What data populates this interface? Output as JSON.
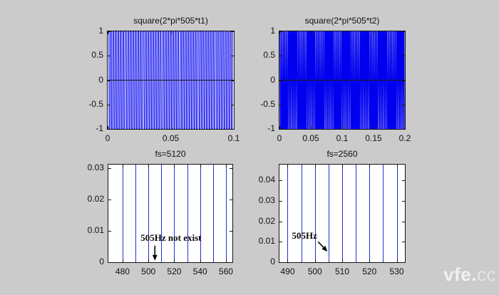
{
  "figure": {
    "background_color": "#cbcbcb",
    "axes_color": "#141414",
    "watermark": {
      "text_bold": "vfe.",
      "text_light": "cc"
    }
  },
  "chart_data": [
    {
      "id": "signal-t1",
      "type": "line",
      "title": "square(2*pi*505*t1)",
      "signal": {
        "expression": "square(2*pi*505*t)",
        "frequency_hz": 505,
        "sample_rate_hz": 5120,
        "duration_s": 0.1
      },
      "xlim": [
        0,
        0.1
      ],
      "ylim": [
        -1,
        1
      ],
      "xticks": [
        0,
        0.05,
        0.1
      ],
      "xtick_labels": [
        "0",
        "0.05",
        "0.1"
      ],
      "yticks": [
        1,
        0.5,
        0,
        -0.5,
        -1
      ],
      "ytick_labels": [
        "1",
        "0.5",
        "0",
        "-0.5",
        "-1"
      ],
      "line_color": "#0000ee",
      "zero_line_color": "#161616"
    },
    {
      "id": "signal-t2",
      "type": "line",
      "title": "square(2*pi*505*t2)",
      "signal": {
        "expression": "square(2*pi*505*t)",
        "frequency_hz": 505,
        "sample_rate_hz": 2560,
        "duration_s": 0.2
      },
      "xlim": [
        0,
        0.2
      ],
      "ylim": [
        -1,
        1
      ],
      "xticks": [
        0,
        0.05,
        0.1,
        0.15,
        0.2
      ],
      "xtick_labels": [
        "0",
        "0.05",
        "0.1",
        "0.15",
        "0.2"
      ],
      "yticks": [
        1,
        0.5,
        0,
        -0.5,
        -1
      ],
      "ytick_labels": [
        "1",
        "0.5",
        "0",
        "-0.5",
        "-1"
      ],
      "line_color": "#0000ee",
      "zero_line_color": "#161616"
    },
    {
      "id": "spectrum-fs5120",
      "type": "stem",
      "title": "fs=5120",
      "xlim": [
        469,
        565
      ],
      "ylim": [
        0,
        0.0312
      ],
      "xticks": [
        480,
        500,
        520,
        540,
        560
      ],
      "xtick_labels": [
        "480",
        "500",
        "520",
        "540",
        "560"
      ],
      "yticks": [
        0,
        0.01,
        0.02,
        0.03
      ],
      "ytick_labels": [
        "0",
        "0.01",
        "0.02",
        "0.03"
      ],
      "lines_hz": [
        480,
        490,
        500,
        510,
        520,
        530,
        540,
        550,
        560
      ],
      "line_color": "#2233cc",
      "annotation": {
        "text": "505Hz not exist",
        "text_x_hz": 517.5,
        "text_y": 0.0066,
        "arrow": {
          "x1_hz": 505,
          "y1": 0.0053,
          "x2_hz": 505,
          "y2": 0.0005
        }
      }
    },
    {
      "id": "spectrum-fs2560",
      "type": "stem",
      "title": "fs=2560",
      "xlim": [
        487,
        533
      ],
      "ylim": [
        0,
        0.0477
      ],
      "xticks": [
        490,
        500,
        510,
        520,
        530
      ],
      "xtick_labels": [
        "490",
        "500",
        "510",
        "520",
        "530"
      ],
      "yticks": [
        0,
        0.01,
        0.02,
        0.03,
        0.04
      ],
      "ytick_labels": [
        "0",
        "0.01",
        "0.02",
        "0.03",
        "0.04"
      ],
      "lines_hz": [
        490,
        495,
        500,
        505,
        510,
        515,
        520,
        525,
        530
      ],
      "line_color": "#2233cc",
      "annotation": {
        "text": "505Hz",
        "text_x_hz": 496.2,
        "text_y": 0.0112,
        "arrow": {
          "x1_hz": 501.2,
          "y1": 0.01,
          "x2_hz": 504.6,
          "y2": 0.0052
        }
      }
    }
  ]
}
